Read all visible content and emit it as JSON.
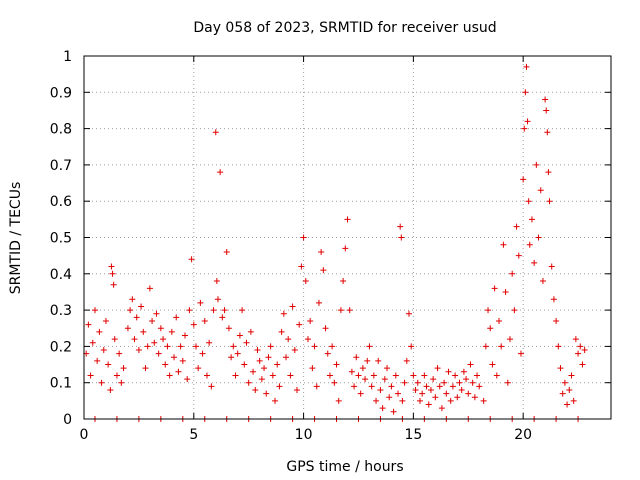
{
  "chart_data": {
    "type": "scatter",
    "title": "Day 058 of 2023, SRMTID for receiver usud",
    "xlabel": "GPS time / hours",
    "ylabel": "SRMTID / TECUs",
    "xlim": [
      0,
      24
    ],
    "ylim": [
      0,
      1
    ],
    "xticks": [
      0,
      5,
      10,
      15,
      20
    ],
    "yticks": [
      0,
      0.1,
      0.2,
      0.3,
      0.4,
      0.5,
      0.6,
      0.7,
      0.8,
      0.9,
      1
    ],
    "xtick_labels": [
      "0",
      "5",
      "10",
      "15",
      "20"
    ],
    "ytick_labels": [
      "0",
      "0.1",
      "0.2",
      "0.3",
      "0.4",
      "0.5",
      "0.6",
      "0.7",
      "0.8",
      "0.9",
      "1"
    ],
    "grid": true,
    "marker": "plus",
    "color": "#e00000",
    "series": [
      {
        "name": "SRMTID",
        "points": [
          [
            0.1,
            0.18
          ],
          [
            0.2,
            0.26
          ],
          [
            0.3,
            0.12
          ],
          [
            0.4,
            0.21
          ],
          [
            0.5,
            0.3
          ],
          [
            0.6,
            0.16
          ],
          [
            0.7,
            0.24
          ],
          [
            0.8,
            0.1
          ],
          [
            0.9,
            0.19
          ],
          [
            1.0,
            0.27
          ],
          [
            1.1,
            0.15
          ],
          [
            1.2,
            0.08
          ],
          [
            1.25,
            0.42
          ],
          [
            1.3,
            0.4
          ],
          [
            1.35,
            0.37
          ],
          [
            1.4,
            0.22
          ],
          [
            1.5,
            0.12
          ],
          [
            1.6,
            0.18
          ],
          [
            1.7,
            0.1
          ],
          [
            1.8,
            0.14
          ],
          [
            2.0,
            0.25
          ],
          [
            2.1,
            0.3
          ],
          [
            2.2,
            0.33
          ],
          [
            2.3,
            0.22
          ],
          [
            2.4,
            0.28
          ],
          [
            2.5,
            0.19
          ],
          [
            2.6,
            0.31
          ],
          [
            2.7,
            0.24
          ],
          [
            2.8,
            0.14
          ],
          [
            2.9,
            0.2
          ],
          [
            3.0,
            0.36
          ],
          [
            3.1,
            0.27
          ],
          [
            3.2,
            0.21
          ],
          [
            3.3,
            0.29
          ],
          [
            3.4,
            0.18
          ],
          [
            3.5,
            0.25
          ],
          [
            3.6,
            0.22
          ],
          [
            3.7,
            0.15
          ],
          [
            3.8,
            0.2
          ],
          [
            3.9,
            0.12
          ],
          [
            4.0,
            0.24
          ],
          [
            4.1,
            0.17
          ],
          [
            4.2,
            0.28
          ],
          [
            4.3,
            0.13
          ],
          [
            4.4,
            0.2
          ],
          [
            4.5,
            0.16
          ],
          [
            4.6,
            0.23
          ],
          [
            4.7,
            0.11
          ],
          [
            4.8,
            0.3
          ],
          [
            4.9,
            0.44
          ],
          [
            5.0,
            0.26
          ],
          [
            5.1,
            0.2
          ],
          [
            5.2,
            0.14
          ],
          [
            5.3,
            0.32
          ],
          [
            5.4,
            0.18
          ],
          [
            5.5,
            0.27
          ],
          [
            5.6,
            0.12
          ],
          [
            5.7,
            0.21
          ],
          [
            5.8,
            0.09
          ],
          [
            5.9,
            0.3
          ],
          [
            6.0,
            0.79
          ],
          [
            6.05,
            0.38
          ],
          [
            6.1,
            0.33
          ],
          [
            6.2,
            0.68
          ],
          [
            6.3,
            0.28
          ],
          [
            6.4,
            0.3
          ],
          [
            6.5,
            0.46
          ],
          [
            6.6,
            0.25
          ],
          [
            6.7,
            0.17
          ],
          [
            6.8,
            0.2
          ],
          [
            6.9,
            0.12
          ],
          [
            7.0,
            0.18
          ],
          [
            7.1,
            0.23
          ],
          [
            7.2,
            0.3
          ],
          [
            7.3,
            0.15
          ],
          [
            7.4,
            0.21
          ],
          [
            7.5,
            0.1
          ],
          [
            7.6,
            0.24
          ],
          [
            7.7,
            0.13
          ],
          [
            7.8,
            0.08
          ],
          [
            7.9,
            0.19
          ],
          [
            8.0,
            0.16
          ],
          [
            8.1,
            0.11
          ],
          [
            8.2,
            0.14
          ],
          [
            8.3,
            0.07
          ],
          [
            8.4,
            0.17
          ],
          [
            8.5,
            0.2
          ],
          [
            8.6,
            0.12
          ],
          [
            8.7,
            0.05
          ],
          [
            8.8,
            0.15
          ],
          [
            8.9,
            0.09
          ],
          [
            9.0,
            0.24
          ],
          [
            9.1,
            0.29
          ],
          [
            9.2,
            0.17
          ],
          [
            9.3,
            0.22
          ],
          [
            9.4,
            0.12
          ],
          [
            9.5,
            0.31
          ],
          [
            9.6,
            0.19
          ],
          [
            9.7,
            0.08
          ],
          [
            9.8,
            0.26
          ],
          [
            9.9,
            0.42
          ],
          [
            10.0,
            0.5
          ],
          [
            10.1,
            0.38
          ],
          [
            10.2,
            0.22
          ],
          [
            10.3,
            0.27
          ],
          [
            10.4,
            0.14
          ],
          [
            10.5,
            0.2
          ],
          [
            10.6,
            0.09
          ],
          [
            10.7,
            0.32
          ],
          [
            10.8,
            0.46
          ],
          [
            10.9,
            0.41
          ],
          [
            11.0,
            0.25
          ],
          [
            11.1,
            0.18
          ],
          [
            11.2,
            0.12
          ],
          [
            11.3,
            0.2
          ],
          [
            11.4,
            0.1
          ],
          [
            11.5,
            0.15
          ],
          [
            11.6,
            0.05
          ],
          [
            11.7,
            0.3
          ],
          [
            11.8,
            0.38
          ],
          [
            11.9,
            0.47
          ],
          [
            12.0,
            0.55
          ],
          [
            12.1,
            0.3
          ],
          [
            12.2,
            0.13
          ],
          [
            12.3,
            0.09
          ],
          [
            12.4,
            0.17
          ],
          [
            12.5,
            0.12
          ],
          [
            12.6,
            0.07
          ],
          [
            12.7,
            0.14
          ],
          [
            12.8,
            0.11
          ],
          [
            12.9,
            0.16
          ],
          [
            13.0,
            0.2
          ],
          [
            13.1,
            0.09
          ],
          [
            13.2,
            0.12
          ],
          [
            13.3,
            0.05
          ],
          [
            13.4,
            0.16
          ],
          [
            13.5,
            0.08
          ],
          [
            13.6,
            0.03
          ],
          [
            13.7,
            0.11
          ],
          [
            13.8,
            0.14
          ],
          [
            13.9,
            0.06
          ],
          [
            14.0,
            0.09
          ],
          [
            14.1,
            0.02
          ],
          [
            14.2,
            0.12
          ],
          [
            14.3,
            0.07
          ],
          [
            14.4,
            0.53
          ],
          [
            14.45,
            0.5
          ],
          [
            14.5,
            0.05
          ],
          [
            14.6,
            0.1
          ],
          [
            14.7,
            0.16
          ],
          [
            14.8,
            0.29
          ],
          [
            14.9,
            0.2
          ],
          [
            15.0,
            0.12
          ],
          [
            15.1,
            0.08
          ],
          [
            15.2,
            0.1
          ],
          [
            15.3,
            0.05
          ],
          [
            15.4,
            0.07
          ],
          [
            15.5,
            0.12
          ],
          [
            15.6,
            0.09
          ],
          [
            15.7,
            0.04
          ],
          [
            15.8,
            0.08
          ],
          [
            15.9,
            0.11
          ],
          [
            16.0,
            0.06
          ],
          [
            16.1,
            0.14
          ],
          [
            16.2,
            0.09
          ],
          [
            16.3,
            0.03
          ],
          [
            16.4,
            0.1
          ],
          [
            16.5,
            0.07
          ],
          [
            16.6,
            0.13
          ],
          [
            16.7,
            0.05
          ],
          [
            16.8,
            0.09
          ],
          [
            16.9,
            0.12
          ],
          [
            17.0,
            0.06
          ],
          [
            17.1,
            0.1
          ],
          [
            17.2,
            0.08
          ],
          [
            17.3,
            0.13
          ],
          [
            17.4,
            0.11
          ],
          [
            17.5,
            0.07
          ],
          [
            17.6,
            0.15
          ],
          [
            17.7,
            0.1
          ],
          [
            17.8,
            0.06
          ],
          [
            17.9,
            0.12
          ],
          [
            18.0,
            0.09
          ],
          [
            18.2,
            0.05
          ],
          [
            18.3,
            0.2
          ],
          [
            18.4,
            0.3
          ],
          [
            18.5,
            0.25
          ],
          [
            18.6,
            0.15
          ],
          [
            18.7,
            0.36
          ],
          [
            18.8,
            0.12
          ],
          [
            18.9,
            0.27
          ],
          [
            19.0,
            0.2
          ],
          [
            19.1,
            0.48
          ],
          [
            19.2,
            0.35
          ],
          [
            19.3,
            0.1
          ],
          [
            19.4,
            0.22
          ],
          [
            19.5,
            0.4
          ],
          [
            19.6,
            0.3
          ],
          [
            19.7,
            0.53
          ],
          [
            19.8,
            0.45
          ],
          [
            19.9,
            0.18
          ],
          [
            20.0,
            0.66
          ],
          [
            20.05,
            0.8
          ],
          [
            20.1,
            0.9
          ],
          [
            20.15,
            0.97
          ],
          [
            20.2,
            0.82
          ],
          [
            20.25,
            0.6
          ],
          [
            20.3,
            0.48
          ],
          [
            20.4,
            0.55
          ],
          [
            20.5,
            0.43
          ],
          [
            20.6,
            0.7
          ],
          [
            20.7,
            0.5
          ],
          [
            20.8,
            0.63
          ],
          [
            20.9,
            0.38
          ],
          [
            21.0,
            0.88
          ],
          [
            21.05,
            0.85
          ],
          [
            21.1,
            0.79
          ],
          [
            21.15,
            0.68
          ],
          [
            21.2,
            0.6
          ],
          [
            21.3,
            0.42
          ],
          [
            21.4,
            0.33
          ],
          [
            21.5,
            0.27
          ],
          [
            21.6,
            0.2
          ],
          [
            21.7,
            0.14
          ],
          [
            21.8,
            0.07
          ],
          [
            21.9,
            0.1
          ],
          [
            22.0,
            0.04
          ],
          [
            22.1,
            0.08
          ],
          [
            22.2,
            0.12
          ],
          [
            22.3,
            0.05
          ],
          [
            22.4,
            0.22
          ],
          [
            22.5,
            0.18
          ],
          [
            22.6,
            0.2
          ],
          [
            22.7,
            0.15
          ],
          [
            22.8,
            0.19
          ],
          [
            0.5,
            0.0
          ],
          [
            1.5,
            0.0
          ],
          [
            2.5,
            0.0
          ],
          [
            3.5,
            0.0
          ],
          [
            4.5,
            0.0
          ],
          [
            5.5,
            0.0
          ],
          [
            6.5,
            0.0
          ],
          [
            7.5,
            0.0
          ],
          [
            8.5,
            0.0
          ],
          [
            9.5,
            0.0
          ],
          [
            10.5,
            0.0
          ],
          [
            11.5,
            0.0
          ],
          [
            12.5,
            0.0
          ],
          [
            13.5,
            0.0
          ],
          [
            14.5,
            0.0
          ],
          [
            15.5,
            0.0
          ],
          [
            16.5,
            0.0
          ],
          [
            17.5,
            0.0
          ],
          [
            18.5,
            0.0
          ],
          [
            19.5,
            0.0
          ],
          [
            20.5,
            0.0
          ],
          [
            21.5,
            0.0
          ],
          [
            22.5,
            0.0
          ]
        ]
      }
    ]
  }
}
